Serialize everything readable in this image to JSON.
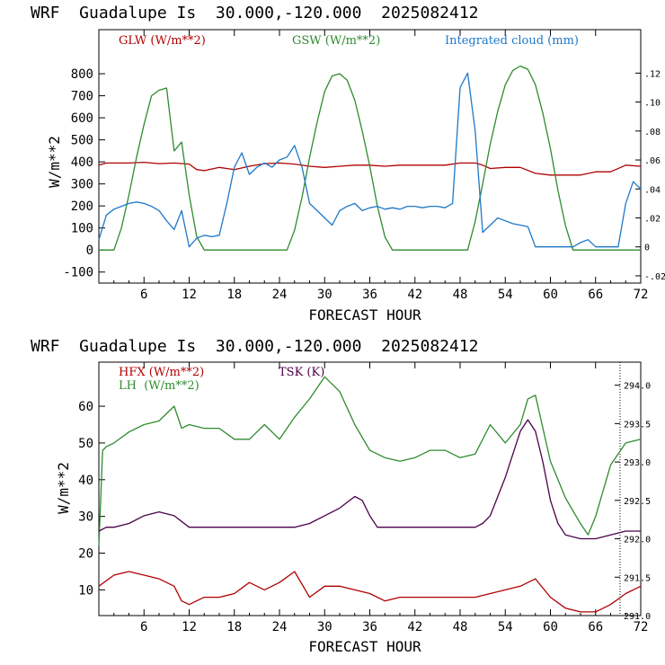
{
  "chart_data": [
    {
      "type": "line",
      "title": "WRF  Guadalupe Is  30.000,-120.000  2025082412",
      "xlabel": "FORECAST HOUR",
      "ylabel": "W/m**2",
      "xlim": [
        0,
        72
      ],
      "ylim": [
        -150,
        1000
      ],
      "y2lim": [
        -0.025,
        0.15
      ],
      "xticks": [
        "6",
        "12",
        "18",
        "24",
        "30",
        "36",
        "42",
        "48",
        "54",
        "60",
        "66",
        "72"
      ],
      "yticks": [
        "-100",
        "0",
        "100",
        "200",
        "300",
        "400",
        "500",
        "600",
        "700",
        "800"
      ],
      "y2ticks": [
        "-.02",
        "0",
        ".02",
        ".04",
        ".06",
        ".08",
        ".10",
        ".12"
      ],
      "grid": false,
      "legend": "top",
      "series": [
        {
          "name": "GLW (W/m**2)",
          "color": "#b00000",
          "axis": "left",
          "x": [
            0,
            1,
            2,
            4,
            6,
            8,
            10,
            12,
            13,
            14,
            16,
            18,
            20,
            22,
            24,
            26,
            28,
            30,
            32,
            34,
            36,
            38,
            40,
            42,
            44,
            46,
            48,
            50,
            51,
            52,
            54,
            56,
            58,
            60,
            62,
            64,
            66,
            68,
            70,
            72
          ],
          "y": [
            385,
            395,
            395,
            395,
            398,
            392,
            395,
            390,
            365,
            360,
            375,
            365,
            380,
            392,
            395,
            390,
            380,
            375,
            380,
            385,
            385,
            380,
            385,
            385,
            385,
            385,
            395,
            395,
            385,
            370,
            375,
            375,
            348,
            340,
            340,
            340,
            355,
            355,
            385,
            380
          ]
        },
        {
          "name": "GSW (W/m**2)",
          "color": "#2e8b2e",
          "axis": "left",
          "x": [
            0,
            1,
            2,
            3,
            4,
            5,
            6,
            7,
            8,
            9,
            10,
            11,
            12,
            13,
            14,
            24,
            25,
            26,
            27,
            28,
            29,
            30,
            31,
            32,
            33,
            34,
            35,
            36,
            37,
            38,
            39,
            48,
            49,
            50,
            51,
            52,
            53,
            54,
            55,
            56,
            57,
            58,
            59,
            60,
            61,
            62,
            63,
            72
          ],
          "y": [
            0,
            0,
            0,
            100,
            250,
            420,
            570,
            700,
            725,
            735,
            450,
            490,
            250,
            60,
            0,
            0,
            0,
            90,
            240,
            420,
            580,
            720,
            790,
            800,
            770,
            680,
            540,
            380,
            200,
            60,
            0,
            0,
            0,
            130,
            300,
            480,
            630,
            750,
            815,
            835,
            820,
            750,
            620,
            460,
            270,
            110,
            0,
            0
          ]
        },
        {
          "name": "Integrated cloud (mm)",
          "color": "#1e78c8",
          "axis": "right",
          "x": [
            0,
            1,
            2,
            3,
            4,
            5,
            6,
            7,
            8,
            9,
            10,
            11,
            12,
            13,
            14,
            15,
            16,
            17,
            18,
            19,
            20,
            21,
            22,
            23,
            24,
            25,
            26,
            27,
            28,
            29,
            30,
            31,
            32,
            33,
            34,
            35,
            36,
            37,
            38,
            39,
            40,
            41,
            42,
            43,
            44,
            45,
            46,
            47,
            48,
            49,
            50,
            51,
            52,
            53,
            54,
            55,
            56,
            57,
            58,
            59,
            60,
            61,
            62,
            63,
            64,
            65,
            66,
            67,
            68,
            69,
            70,
            71,
            72
          ],
          "y": [
            0.005,
            0.022,
            0.026,
            0.028,
            0.03,
            0.031,
            0.03,
            0.028,
            0.025,
            0.018,
            0.012,
            0.025,
            0.0,
            0.006,
            0.008,
            0.007,
            0.008,
            0.03,
            0.055,
            0.065,
            0.05,
            0.055,
            0.058,
            0.055,
            0.06,
            0.062,
            0.07,
            0.055,
            0.03,
            0.025,
            0.02,
            0.015,
            0.025,
            0.028,
            0.03,
            0.025,
            0.027,
            0.028,
            0.026,
            0.027,
            0.026,
            0.028,
            0.028,
            0.027,
            0.028,
            0.028,
            0.027,
            0.03,
            0.11,
            0.12,
            0.08,
            0.01,
            0.015,
            0.02,
            0.018,
            0.016,
            0.015,
            0.014,
            0.0,
            0.0,
            0.0,
            0.0,
            0.0,
            0.0,
            0.003,
            0.005,
            0.0,
            0.0,
            0.0,
            0.0,
            0.03,
            0.045,
            0.04
          ]
        }
      ]
    },
    {
      "type": "line",
      "title": "WRF  Guadalupe Is  30.000,-120.000  2025082412",
      "xlabel": "FORECAST HOUR",
      "ylabel": "W/m**2",
      "xlim": [
        0,
        72
      ],
      "ylim": [
        3,
        72
      ],
      "y2lim": [
        291.0,
        294.3
      ],
      "xticks": [
        "6",
        "12",
        "18",
        "24",
        "30",
        "36",
        "42",
        "48",
        "54",
        "60",
        "66",
        "72"
      ],
      "yticks": [
        "10",
        "20",
        "30",
        "40",
        "50",
        "60"
      ],
      "y2ticks": [
        "291.0",
        "291.5",
        "292.0",
        "292.5",
        "293.0",
        "293.5",
        "294.0"
      ],
      "grid": false,
      "legend": "top-left",
      "series": [
        {
          "name": "HFX (W/m**2)",
          "color": "#b00000",
          "axis": "left",
          "x": [
            0,
            2,
            4,
            6,
            8,
            10,
            11,
            12,
            14,
            16,
            18,
            20,
            22,
            24,
            26,
            28,
            30,
            32,
            34,
            36,
            38,
            40,
            42,
            44,
            46,
            48,
            50,
            52,
            54,
            56,
            58,
            60,
            62,
            64,
            66,
            68,
            70,
            72
          ],
          "y": [
            11,
            14,
            15,
            14,
            13,
            11,
            7,
            6,
            8,
            8,
            9,
            12,
            10,
            12,
            15,
            8,
            11,
            11,
            10,
            9,
            7,
            8,
            8,
            8,
            8,
            8,
            8,
            9,
            10,
            11,
            13,
            8,
            5,
            4,
            4,
            6,
            9,
            11
          ]
        },
        {
          "name": "LH  (W/m**2)",
          "color": "#2e8b2e",
          "axis": "left",
          "x": [
            0,
            0.5,
            1,
            2,
            4,
            6,
            8,
            10,
            11,
            12,
            14,
            16,
            18,
            20,
            22,
            24,
            26,
            28,
            30,
            32,
            34,
            36,
            38,
            40,
            42,
            44,
            46,
            48,
            50,
            52,
            54,
            56,
            57,
            58,
            60,
            62,
            64,
            65,
            66,
            68,
            70,
            72
          ],
          "y": [
            22,
            48,
            49,
            50,
            53,
            55,
            56,
            60,
            54,
            55,
            54,
            54,
            51,
            51,
            55,
            51,
            57,
            62,
            68,
            64,
            55,
            48,
            46,
            45,
            46,
            48,
            48,
            46,
            47,
            55,
            50,
            55,
            62,
            63,
            45,
            35,
            28,
            25,
            30,
            44,
            50,
            51
          ]
        },
        {
          "name": "TSK (K)",
          "color": "#4b004b",
          "axis": "right",
          "x": [
            0,
            1,
            2,
            4,
            6,
            8,
            10,
            12,
            14,
            16,
            18,
            20,
            22,
            24,
            26,
            28,
            30,
            32,
            34,
            35,
            36,
            37,
            38,
            40,
            42,
            44,
            46,
            48,
            50,
            51,
            52,
            54,
            56,
            57,
            58,
            59,
            60,
            61,
            62,
            64,
            66,
            68,
            70,
            72
          ],
          "y": [
            292.1,
            292.15,
            292.15,
            292.2,
            292.3,
            292.35,
            292.3,
            292.15,
            292.15,
            292.15,
            292.15,
            292.15,
            292.15,
            292.15,
            292.15,
            292.2,
            292.3,
            292.4,
            292.55,
            292.5,
            292.3,
            292.15,
            292.15,
            292.15,
            292.15,
            292.15,
            292.15,
            292.15,
            292.15,
            292.2,
            292.3,
            292.8,
            293.4,
            293.55,
            293.4,
            293.0,
            292.5,
            292.2,
            292.05,
            292.0,
            292.0,
            292.05,
            292.1,
            292.1
          ]
        }
      ]
    }
  ]
}
